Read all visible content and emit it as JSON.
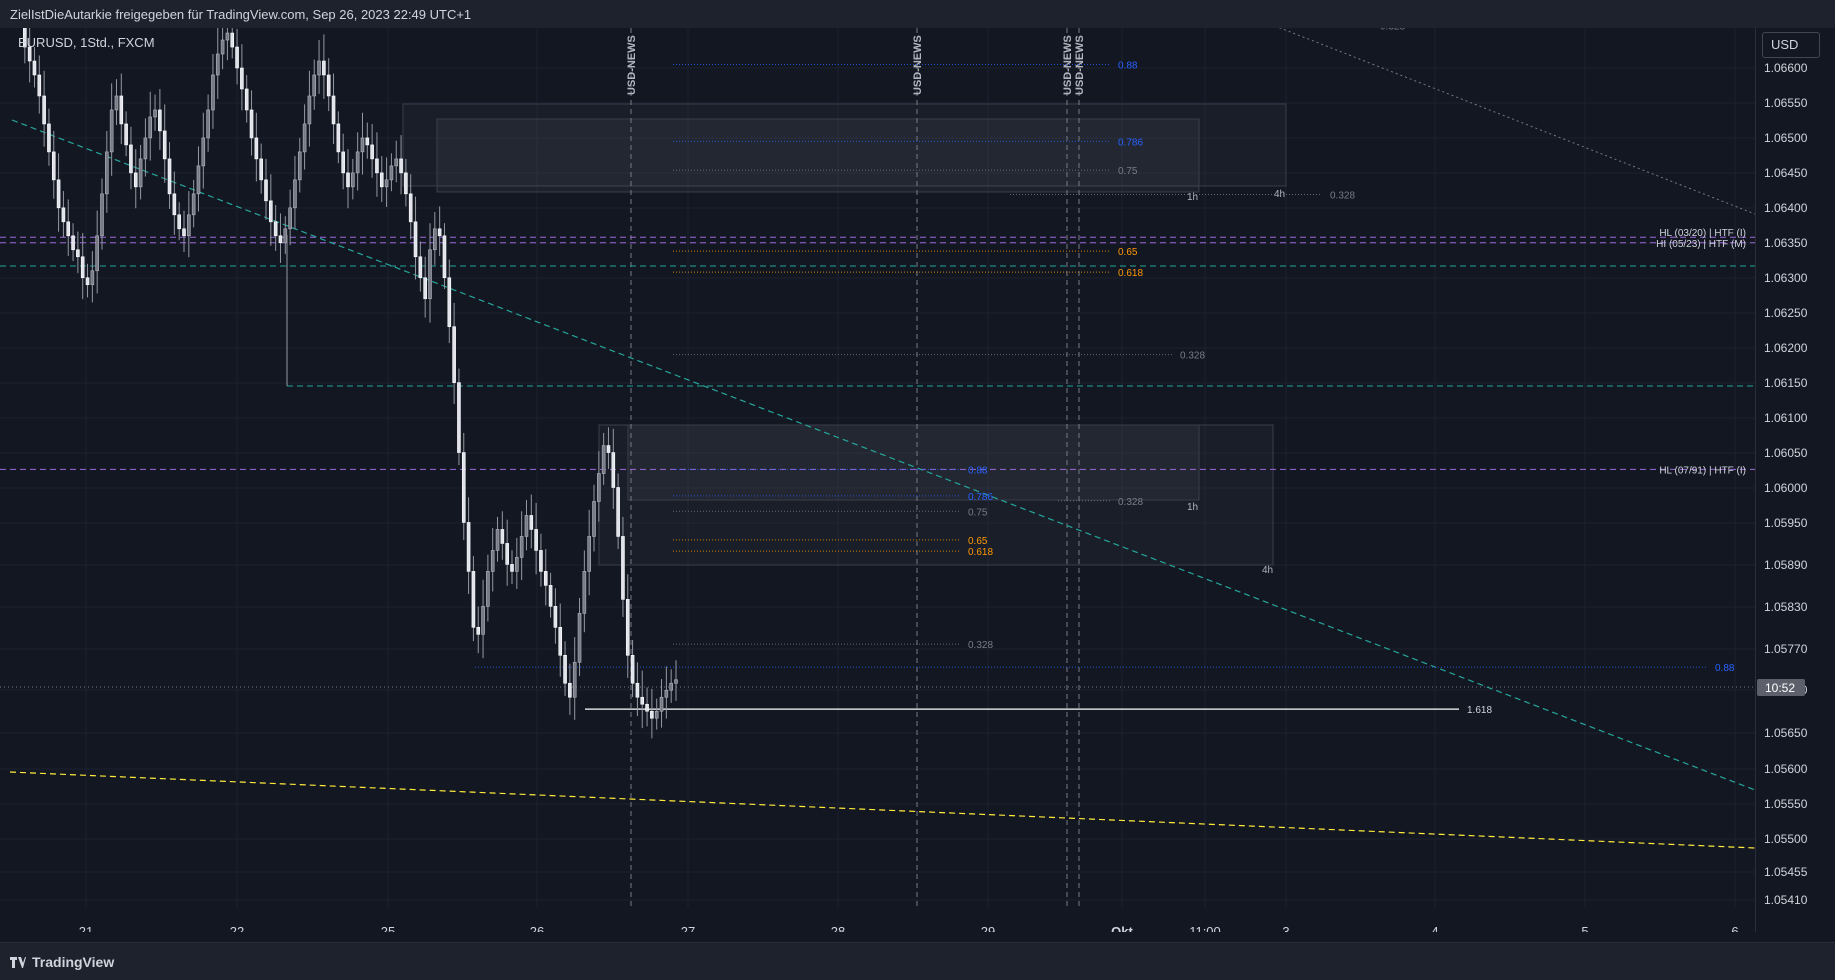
{
  "header": {
    "title": "ZielIstDieAutarkie freigegeben für TradingView.com, Sep 26, 2023 22:49 UTC+1"
  },
  "symbol_label": "EURUSD, 1Std., FXCM",
  "currency_button": "USD",
  "footer": {
    "brand": "TradingView"
  },
  "colors": {
    "background": "#131722",
    "bull": "#d1d4dc",
    "bear": "#e0e3eb",
    "blue_fib": "#2962ff",
    "orange_fib": "#ff9800",
    "teal_trend": "#26a69a",
    "yellow_trend": "#ffeb3b",
    "purple_hl": "#9c6ade"
  },
  "chart_data": {
    "type": "candlestick",
    "ylim": [
      1.05376,
      1.06669
    ],
    "y_ticks": [
      "1.06600",
      "1.06550",
      "1.06500",
      "1.06450",
      "1.06400",
      "1.06350",
      "1.06300",
      "1.06250",
      "1.06200",
      "1.06150",
      "1.06100",
      "1.06050",
      "1.06000",
      "1.05950",
      "1.05890",
      "1.05830",
      "1.05770",
      "1.05710",
      "1.05650",
      "1.05600",
      "1.05550",
      "1.05500",
      "1.05455",
      "1.05410"
    ],
    "x_ticks": [
      "21",
      "22",
      "25",
      "26",
      "27",
      "28",
      "29",
      "Okt",
      "11:00",
      "3",
      "4",
      "5",
      "6"
    ],
    "current_time_label": "10:52",
    "news_labels": [
      "USD-NEWS",
      "USD-NEWS",
      "USD-NEWS",
      "USD-NEWS"
    ],
    "levels": [
      {
        "label": "0.328",
        "price": 1.06661
      },
      {
        "label": "0.88",
        "price": 1.06605
      },
      {
        "label": "0.786",
        "price": 1.06495
      },
      {
        "label": "0.75",
        "price": 1.06454
      },
      {
        "label": "0.328",
        "price": 1.06419
      },
      {
        "label": "0.65",
        "price": 1.06338
      },
      {
        "label": "0.618",
        "price": 1.06308
      },
      {
        "label": "0.328",
        "price": 1.0619
      },
      {
        "label": "0.88",
        "price": 1.06026
      },
      {
        "label": "0.786",
        "price": 1.05988
      },
      {
        "label": "0.75",
        "price": 1.05966
      },
      {
        "label": "0.328",
        "price": 1.05981
      },
      {
        "label": "0.65",
        "price": 1.05925
      },
      {
        "label": "0.618",
        "price": 1.05909
      },
      {
        "label": "0.328",
        "price": 1.05776
      },
      {
        "label": "0.88",
        "price": 1.05743
      },
      {
        "label": "1.618",
        "price": 1.05683
      }
    ],
    "hl_labels": [
      {
        "label": "HL (03/20) | HTF (I)",
        "price": 1.06358
      },
      {
        "label": "HI (05/23) | HTF (M)",
        "price": 1.0635
      },
      {
        "label": "HL (07/91) | HTF (I)",
        "price": 1.06026
      }
    ],
    "zone_labels": [
      "1h",
      "4h",
      "1h",
      "4h"
    ]
  }
}
